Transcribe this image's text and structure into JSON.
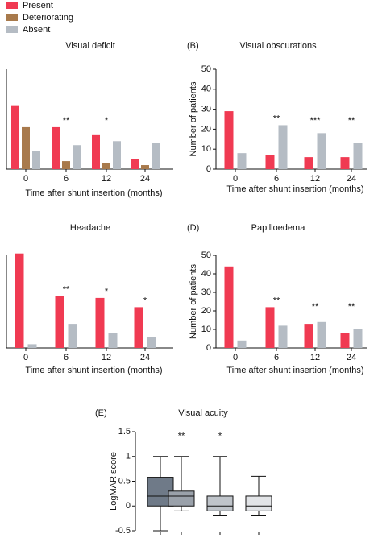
{
  "chart_data": [
    {
      "type": "bar",
      "title": "Visual deficit",
      "x_label": "Time after shunt insertion (months)",
      "categories": [
        "0",
        "6",
        "12",
        "24"
      ],
      "series": [
        {
          "name": "Present",
          "color": "#f03a52",
          "values": [
            32,
            21,
            17,
            5
          ]
        },
        {
          "name": "Deteriorating",
          "color": "#a87a4c",
          "values": [
            21,
            4,
            3,
            2
          ]
        },
        {
          "name": "Absent",
          "color": "#b5bcc4",
          "values": [
            9,
            12,
            14,
            13
          ]
        }
      ],
      "annotations": [
        null,
        "**",
        "*",
        null
      ],
      "ylim": [
        0,
        50
      ]
    },
    {
      "type": "bar",
      "panel_label": "(B)",
      "title": "Visual obscurations",
      "x_label": "Time after shunt insertion (months)",
      "y_label": "Number of patients",
      "categories": [
        "0",
        "6",
        "12",
        "24"
      ],
      "series": [
        {
          "name": "Present",
          "color": "#f03a52",
          "values": [
            29,
            7,
            6,
            6
          ]
        },
        {
          "name": "Absent",
          "color": "#b5bcc4",
          "values": [
            8,
            22,
            18,
            13
          ]
        }
      ],
      "annotations": [
        null,
        "**",
        "***",
        "**"
      ],
      "ylim": [
        0,
        50
      ],
      "yticks": [
        0,
        10,
        20,
        30,
        40,
        50
      ]
    },
    {
      "type": "bar",
      "title": "Headache",
      "x_label": "Time after shunt insertion (months)",
      "categories": [
        "0",
        "6",
        "12",
        "24"
      ],
      "series": [
        {
          "name": "Present",
          "color": "#f03a52",
          "values": [
            51,
            28,
            27,
            22
          ]
        },
        {
          "name": "Absent",
          "color": "#b5bcc4",
          "values": [
            2,
            13,
            8,
            6
          ]
        }
      ],
      "annotations": [
        null,
        "**",
        "*",
        "*"
      ],
      "ylim": [
        0,
        50
      ]
    },
    {
      "type": "bar",
      "panel_label": "(D)",
      "title": "Papilloedema",
      "x_label": "Time after shunt insertion (months)",
      "y_label": "Number of patients",
      "categories": [
        "0",
        "6",
        "12",
        "24"
      ],
      "series": [
        {
          "name": "Present",
          "color": "#f03a52",
          "values": [
            44,
            22,
            13,
            8
          ]
        },
        {
          "name": "Absent",
          "color": "#b5bcc4",
          "values": [
            4,
            12,
            14,
            10
          ]
        }
      ],
      "annotations": [
        null,
        "**",
        "**",
        "**"
      ],
      "ylim": [
        0,
        50
      ],
      "yticks": [
        0,
        10,
        20,
        30,
        40,
        50
      ]
    },
    {
      "type": "box",
      "panel_label": "(E)",
      "title": "Visual acuity",
      "y_label": "LogMAR score",
      "boxes": [
        {
          "whisker_low": -0.5,
          "q1": 0.0,
          "median": 0.2,
          "q3": 0.58,
          "whisker_high": 1.0,
          "color": "#6f7a88"
        },
        {
          "whisker_low": -0.1,
          "q1": 0.0,
          "median": 0.2,
          "q3": 0.3,
          "whisker_high": 1.0,
          "color": "#9aa1aa"
        },
        {
          "whisker_low": -0.2,
          "q1": -0.1,
          "median": 0.0,
          "q3": 0.2,
          "whisker_high": 1.0,
          "color": "#bfc4ca"
        },
        {
          "whisker_low": -0.2,
          "q1": -0.1,
          "median": 0.0,
          "q3": 0.2,
          "whisker_high": 0.6,
          "color": "#e2e4e7"
        }
      ],
      "annotations": [
        null,
        "**",
        "*",
        null
      ],
      "ylim": [
        -0.5,
        1.5
      ],
      "yticks": [
        -0.5,
        0.0,
        0.5,
        1.0,
        1.5
      ]
    }
  ]
}
